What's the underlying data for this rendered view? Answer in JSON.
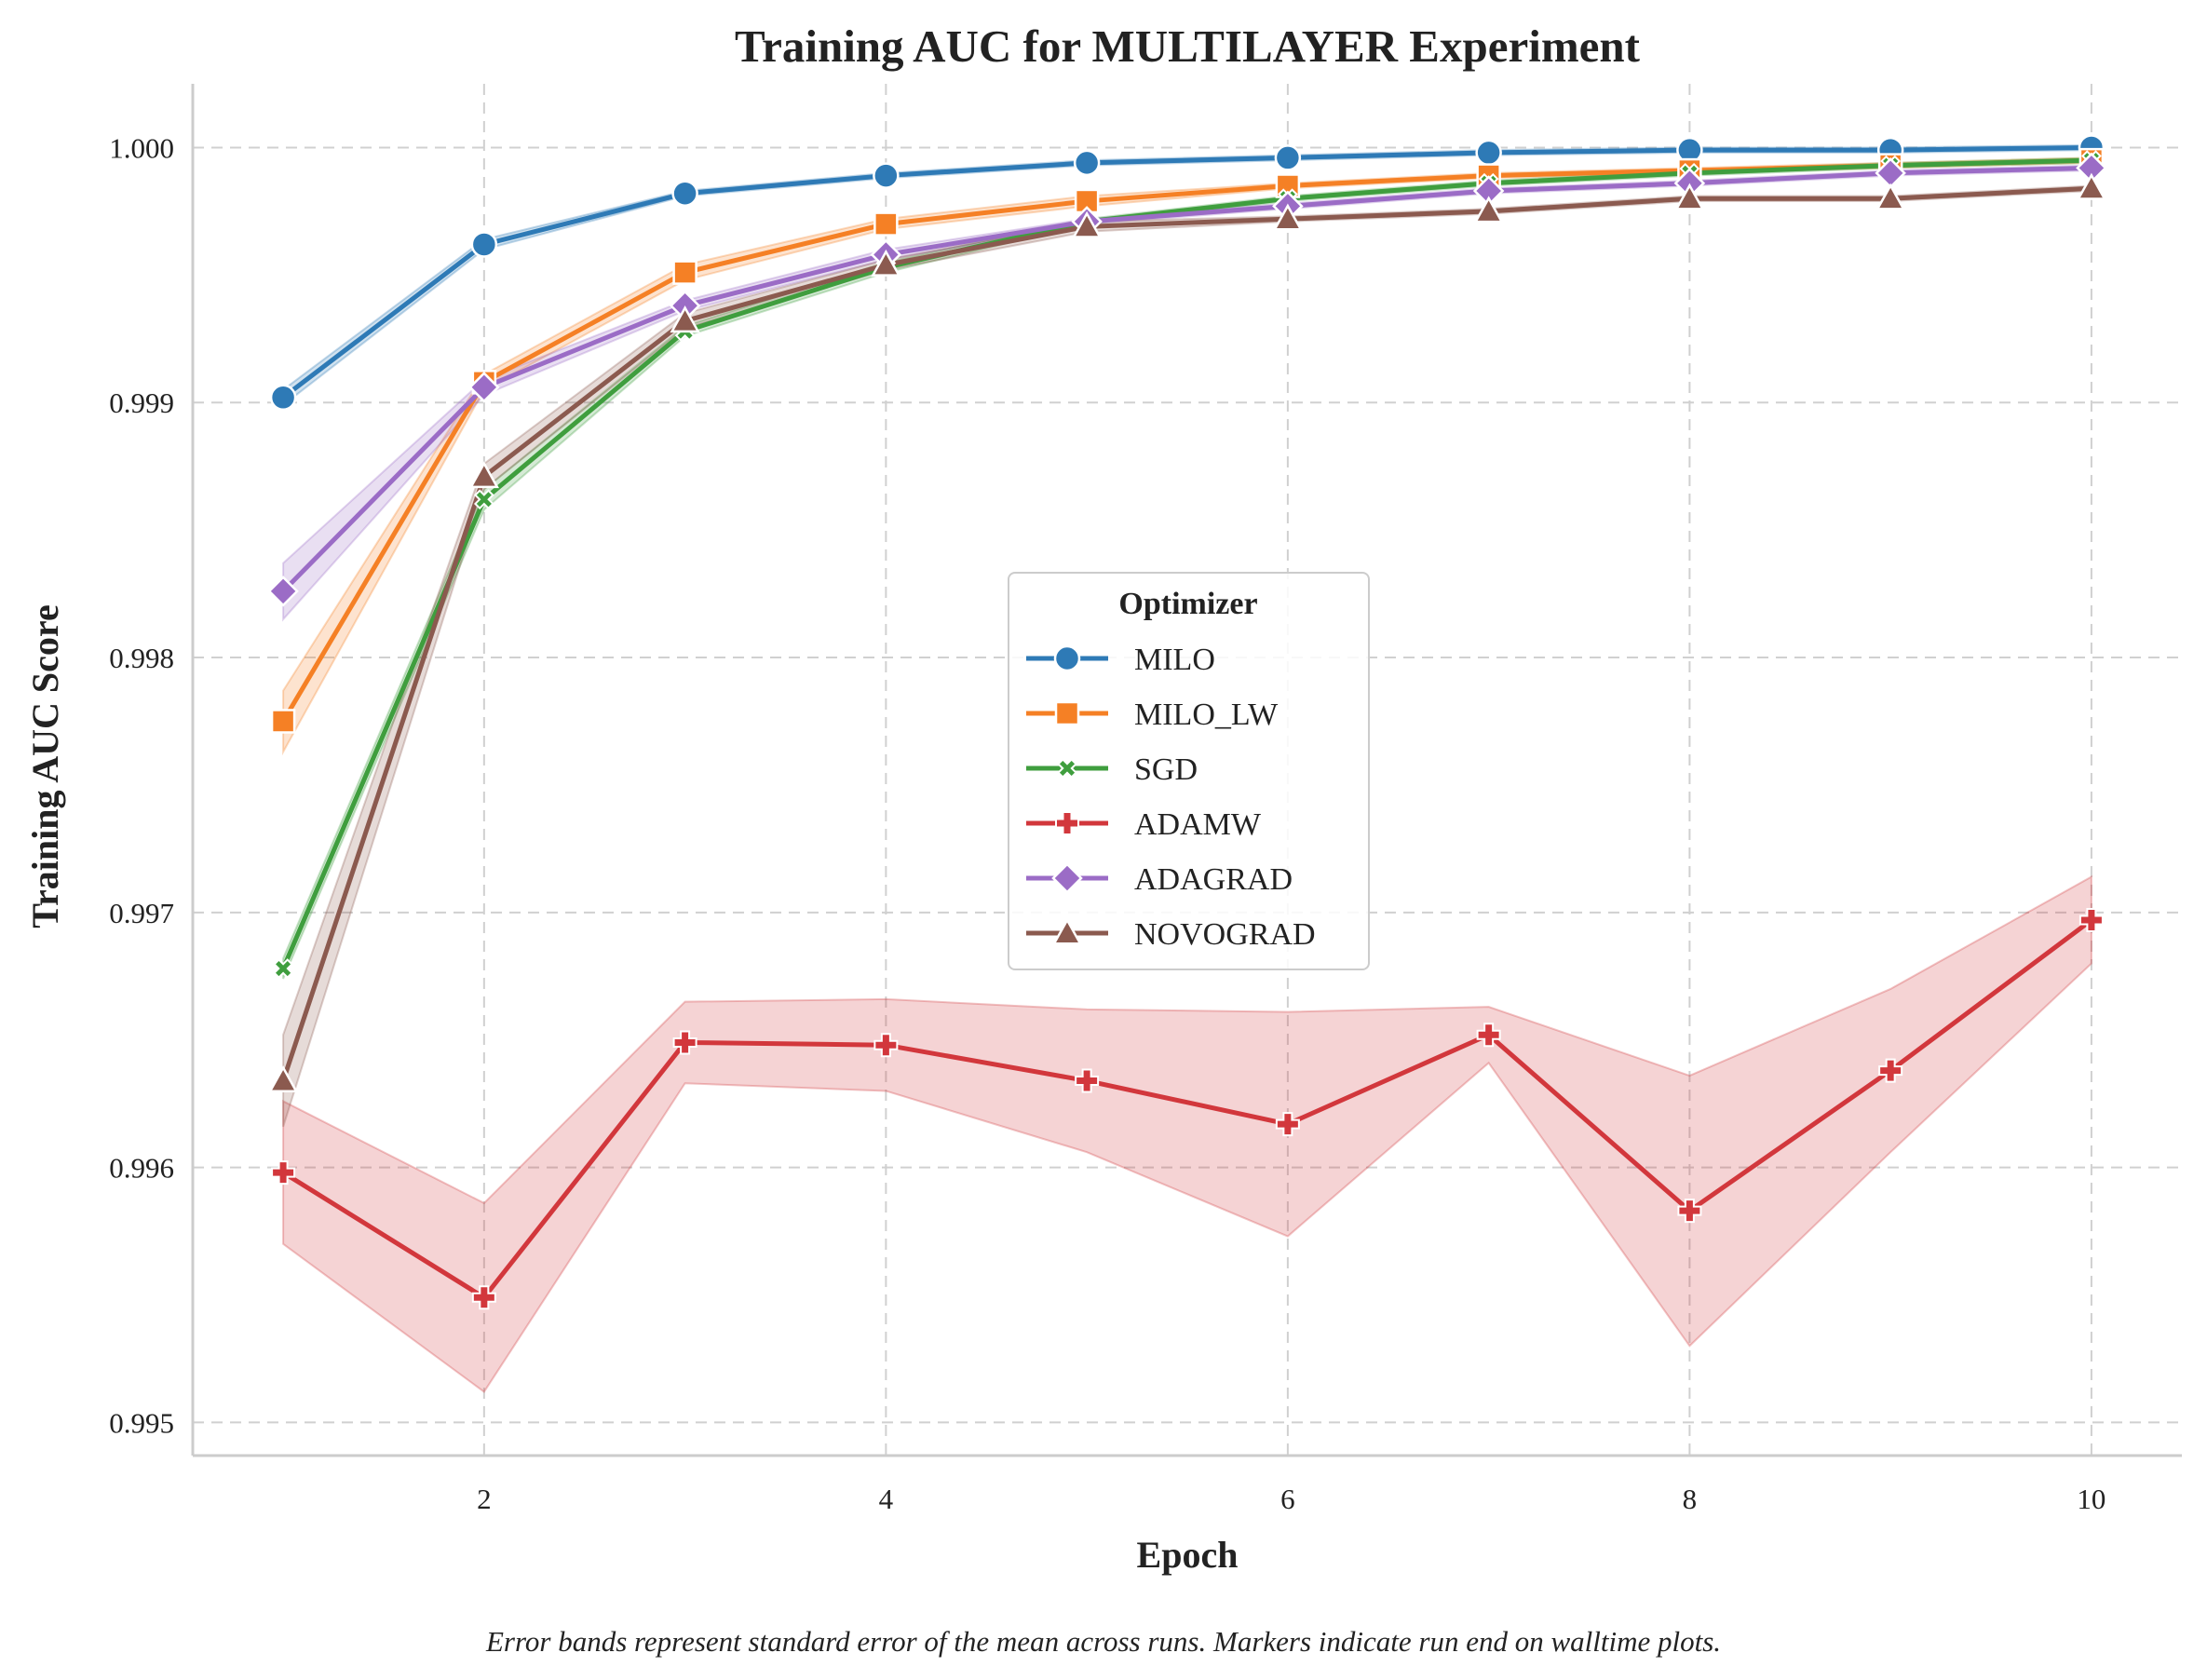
{
  "chart_data": {
    "type": "line",
    "title": "Training AUC for MULTILAYER Experiment",
    "xlabel": "Epoch",
    "ylabel": "Training AUC Score",
    "caption": "Error bands represent standard error of the mean across runs. Markers indicate run end on walltime plots.",
    "x": [
      1,
      2,
      3,
      4,
      5,
      6,
      7,
      8,
      9,
      10
    ],
    "xlim": [
      0.55,
      10.45
    ],
    "ylim": [
      0.99487,
      1.00025
    ],
    "x_ticks": [
      2,
      4,
      6,
      8,
      10
    ],
    "x_tick_labels": [
      "2",
      "4",
      "6",
      "8",
      "10"
    ],
    "y_ticks": [
      0.995,
      0.996,
      0.997,
      0.998,
      0.999,
      1.0
    ],
    "y_tick_labels": [
      "0.995",
      "0.996",
      "0.997",
      "0.998",
      "0.999",
      "1.000"
    ],
    "grid": true,
    "legend": {
      "title": "Optimizer",
      "position": "center"
    },
    "series": [
      {
        "name": "MILO",
        "color": "#2e7ab6",
        "marker": "circle",
        "values": [
          0.99902,
          0.99962,
          0.99982,
          0.99989,
          0.99994,
          0.99996,
          0.99998,
          0.99999,
          0.99999,
          1.0
        ],
        "err": [
          3e-05,
          2e-05,
          1e-05,
          1e-05,
          1e-05,
          1e-05,
          1e-05,
          1e-05,
          1e-05,
          1e-05
        ]
      },
      {
        "name": "MILO_LW",
        "color": "#f58025",
        "marker": "square",
        "values": [
          0.99775,
          0.99908,
          0.99951,
          0.9997,
          0.99979,
          0.99985,
          0.99989,
          0.99991,
          0.99993,
          0.99995
        ],
        "err": [
          0.00012,
          3e-05,
          3e-05,
          2e-05,
          2e-05,
          1e-05,
          1e-05,
          1e-05,
          1e-05,
          1e-05
        ]
      },
      {
        "name": "SGD",
        "color": "#3f9e3e",
        "marker": "x",
        "values": [
          0.99678,
          0.99862,
          0.99928,
          0.99953,
          0.99971,
          0.9998,
          0.99986,
          0.9999,
          0.99993,
          0.99995
        ],
        "err": [
          4e-05,
          4e-05,
          2e-05,
          2e-05,
          1e-05,
          1e-05,
          1e-05,
          1e-05,
          1e-05,
          1e-05
        ]
      },
      {
        "name": "ADAMW",
        "color": "#d2373c",
        "marker": "plus",
        "values": [
          0.99598,
          0.99549,
          0.99649,
          0.99648,
          0.99634,
          0.99617,
          0.99652,
          0.99583,
          0.99638,
          0.99697
        ],
        "err": [
          0.00028,
          0.00037,
          0.00016,
          0.00018,
          0.00028,
          0.00044,
          0.00011,
          0.00053,
          0.00032,
          0.00017
        ]
      },
      {
        "name": "ADAGRAD",
        "color": "#9b6cc6",
        "marker": "diamond",
        "values": [
          0.99826,
          0.99906,
          0.99938,
          0.99958,
          0.99971,
          0.99977,
          0.99983,
          0.99986,
          0.9999,
          0.99992
        ],
        "err": [
          0.00011,
          3e-05,
          2e-05,
          2e-05,
          1e-05,
          1e-05,
          1e-05,
          1e-05,
          1e-05,
          1e-05
        ]
      },
      {
        "name": "NOVOGRAD",
        "color": "#8b5a4f",
        "marker": "triangle",
        "values": [
          0.99634,
          0.99871,
          0.99932,
          0.99954,
          0.99969,
          0.99972,
          0.99975,
          0.9998,
          0.9998,
          0.99984
        ],
        "err": [
          0.00018,
          5e-05,
          3e-05,
          2e-05,
          2e-05,
          1e-05,
          1e-05,
          1e-05,
          1e-05,
          1e-05
        ]
      }
    ]
  }
}
